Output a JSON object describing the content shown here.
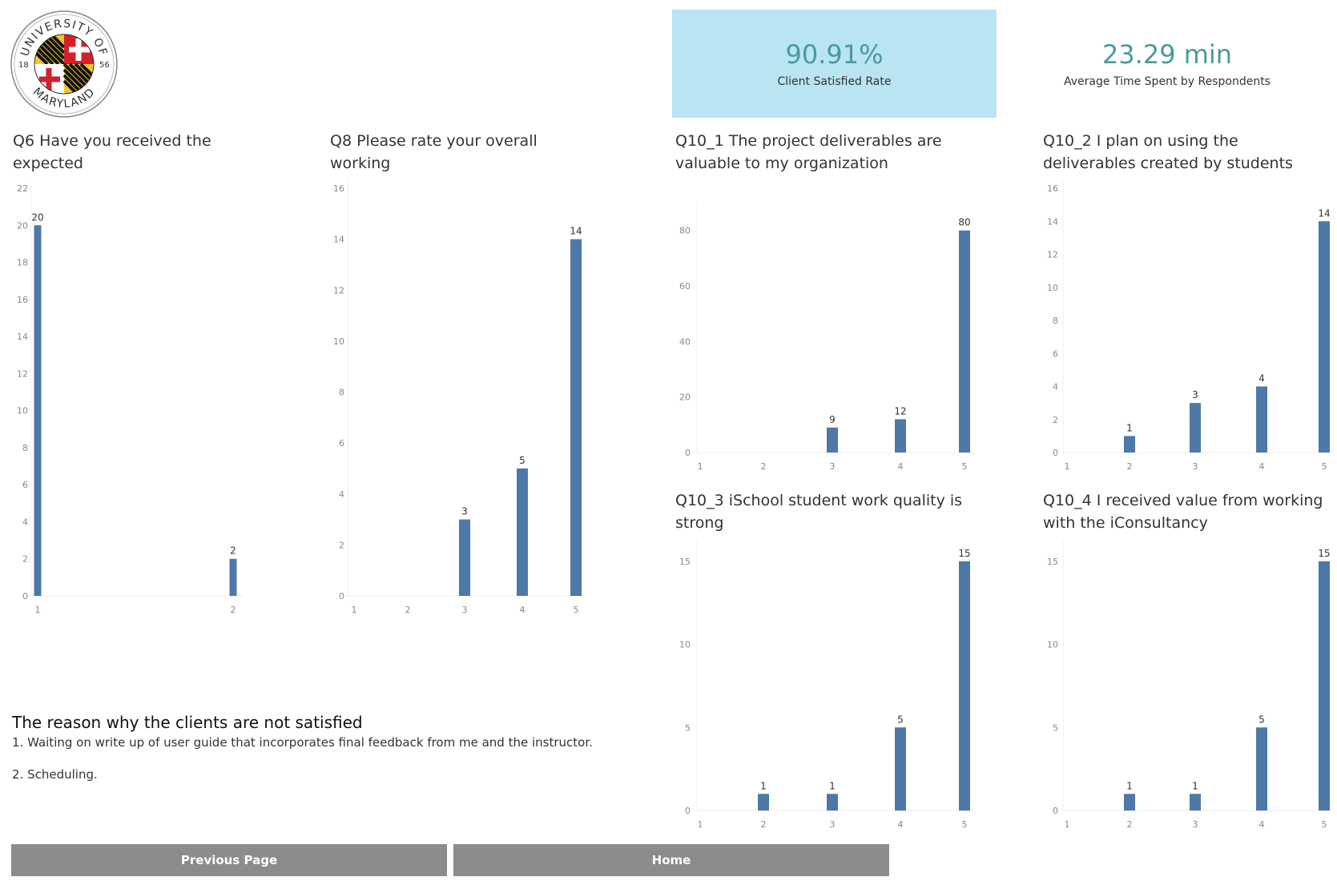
{
  "logo": {
    "top_text": "UNIVERSITY OF",
    "bottom_text": "MARYLAND",
    "year_left": "18",
    "year_right": "56"
  },
  "kpis": [
    {
      "value": "90.91%",
      "label": "Client Satisfied Rate",
      "highlighted": true,
      "bg": "#b9e4f2"
    },
    {
      "value": "23.29 min",
      "label": "Average Time Spent by Respondents",
      "highlighted": false
    }
  ],
  "colors": {
    "bar": "#4e79a7",
    "kpi_value": "#4a9a9c",
    "button": "#8c8c8c"
  },
  "chart_data": [
    {
      "id": "q6",
      "type": "bar",
      "title": "Q6 Have you received the expected",
      "categories": [
        "1",
        "2"
      ],
      "values": [
        20,
        2
      ],
      "yticks": [
        0,
        2,
        4,
        6,
        8,
        10,
        12,
        14,
        16,
        18,
        20,
        22
      ],
      "ylim": [
        0,
        22
      ]
    },
    {
      "id": "q8",
      "type": "bar",
      "title": "Q8 Please rate your overall working",
      "categories": [
        "1",
        "2",
        "3",
        "4",
        "5"
      ],
      "values": [
        null,
        null,
        3,
        5,
        14
      ],
      "yticks": [
        0,
        2,
        4,
        6,
        8,
        10,
        12,
        14,
        16
      ],
      "ylim": [
        0,
        16
      ]
    },
    {
      "id": "q10_1",
      "type": "bar",
      "title": "Q10_1 The project deliverables are valuable to my organization",
      "categories": [
        "1",
        "2",
        "3",
        "4",
        "5"
      ],
      "values": [
        null,
        null,
        9,
        12,
        80
      ],
      "yticks": [
        0,
        20,
        40,
        60,
        80
      ],
      "ylim": [
        0,
        88
      ]
    },
    {
      "id": "q10_2",
      "type": "bar",
      "title": "Q10_2 I plan on using the deliverables created by students",
      "categories": [
        "1",
        "2",
        "3",
        "4",
        "5"
      ],
      "values": [
        null,
        1,
        3,
        4,
        14
      ],
      "yticks": [
        0,
        2,
        4,
        6,
        8,
        10,
        12,
        14,
        16
      ],
      "ylim": [
        0,
        16
      ]
    },
    {
      "id": "q10_3",
      "type": "bar",
      "title": "Q10_3 iSchool student work quality is strong",
      "categories": [
        "1",
        "2",
        "3",
        "4",
        "5"
      ],
      "values": [
        null,
        1,
        1,
        5,
        15
      ],
      "yticks": [
        0,
        5,
        10,
        15
      ],
      "ylim": [
        0,
        16
      ]
    },
    {
      "id": "q10_4",
      "type": "bar",
      "title": "Q10_4 I received value from working with the iConsultancy",
      "categories": [
        "1",
        "2",
        "3",
        "4",
        "5"
      ],
      "values": [
        null,
        1,
        1,
        5,
        15
      ],
      "yticks": [
        0,
        5,
        10,
        15
      ],
      "ylim": [
        0,
        16
      ]
    }
  ],
  "reasons": {
    "title": "The reason why the clients are not satisfied",
    "items": [
      "1. Waiting on write up of user guide that incorporates final feedback from me and the instructor.",
      "2. Scheduling."
    ]
  },
  "buttons": {
    "previous": "Previous Page",
    "home": "Home"
  }
}
